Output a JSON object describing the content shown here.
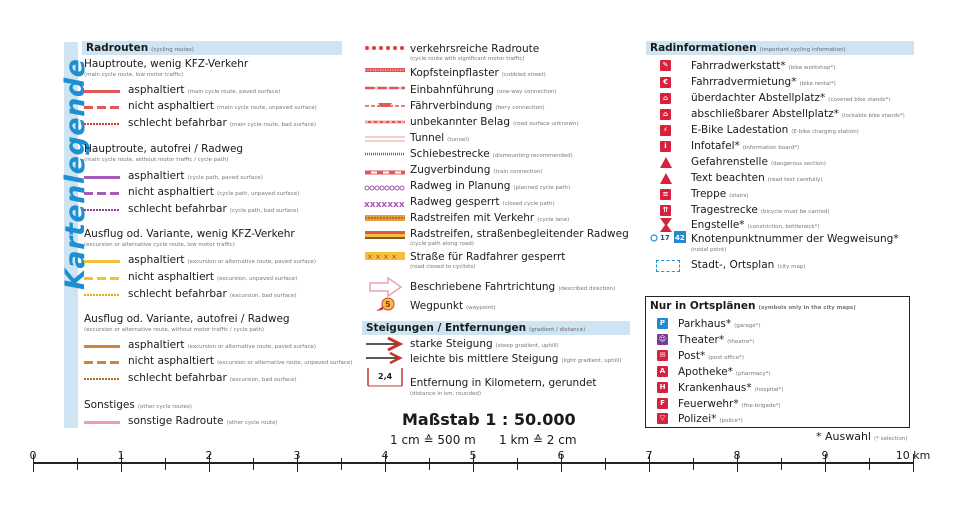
{
  "title": "Kartenlegende",
  "col1": {
    "header": "Radrouten",
    "header_sub": "(cycling routes)",
    "groups": [
      {
        "title": "Hauptroute, wenig KFZ-Verkehr",
        "sub": "(main cycle route, low motor traffic)",
        "items": [
          {
            "label": "asphaltiert",
            "sub": "(main cycle route, paved surface)"
          },
          {
            "label": "nicht asphaltiert",
            "sub": "(main cycle route, unpaved surface)"
          },
          {
            "label": "schlecht befahrbar",
            "sub": "(main cycle route, bad surface)"
          }
        ]
      },
      {
        "title": "Hauptroute, autofrei / Radweg",
        "sub": "(main cycle route, without motor traffic / cycle path)",
        "items": [
          {
            "label": "asphaltiert",
            "sub": "(cycle path, paved surface)"
          },
          {
            "label": "nicht asphaltiert",
            "sub": "(cycle path, unpaved surface)"
          },
          {
            "label": "schlecht befahrbar",
            "sub": "(cycle path, bad surface)"
          }
        ]
      },
      {
        "title": "Ausflug od. Variante, wenig KFZ-Verkehr",
        "sub": "(excursion or alternative cycle route, low motor traffic)",
        "items": [
          {
            "label": "asphaltiert",
            "sub": "(excursion or alternative route, paved surface)"
          },
          {
            "label": "nicht asphaltiert",
            "sub": "(excursion, unpaved surface)"
          },
          {
            "label": "schlecht befahrbar",
            "sub": "(excursion, bad surface)"
          }
        ]
      },
      {
        "title": "Ausflug od. Variante, autofrei / Radweg",
        "sub": "(excursion or alternative route, without motor traffic / cycle path)",
        "items": [
          {
            "label": "asphaltiert",
            "sub": "(excursion or alternative route, paved surface)"
          },
          {
            "label": "nicht asphaltiert",
            "sub": "(excursion or alternative route, unpaved surface)"
          },
          {
            "label": "schlecht befahrbar",
            "sub": "(excursion, bad surface)"
          }
        ]
      },
      {
        "title": "Sonstiges",
        "sub": "(other cycle routes)",
        "items": [
          {
            "label": "sonstige Radroute",
            "sub": "(other cycle route)"
          }
        ]
      }
    ]
  },
  "col2": {
    "items": [
      {
        "label": "verkehrsreiche Radroute",
        "sub": "(cycle route with significant motor traffic)"
      },
      {
        "label": "Kopfsteinpflaster",
        "sub": "(cobbled street)"
      },
      {
        "label": "Einbahnführung",
        "sub": "(one-way connection)"
      },
      {
        "label": "Fährverbindung",
        "sub": "(ferry connection)"
      },
      {
        "label": "unbekannter Belag",
        "sub": "(road surface unknown)"
      },
      {
        "label": "Tunnel",
        "sub": "(tunnel)"
      },
      {
        "label": "Schiebestrecke",
        "sub": "(dismounting recommended)"
      },
      {
        "label": "Zugverbindung",
        "sub": "(train connection)"
      },
      {
        "label": "Radweg in Planung",
        "sub": "(planned cycle path)"
      },
      {
        "label": "Radweg gesperrt",
        "sub": "(closed cycle path)"
      },
      {
        "label": "Radstreifen mit Verkehr",
        "sub": "(cycle lane)"
      },
      {
        "label": "Radstreifen, straßenbegleitender Radweg",
        "sub": "(cycle path along road)"
      },
      {
        "label": "Straße für Radfahrer gesperrt",
        "sub": "(road closed to cyclists)"
      },
      {
        "label": "Beschriebene Fahrtrichtung",
        "sub": "(described direction)"
      },
      {
        "label": "Wegpunkt",
        "sub": "(waypoint)"
      }
    ],
    "waypoint_number": "5",
    "gradients_header": "Steigungen / Entfernungen",
    "gradients_header_sub": "(gradient / distance)",
    "gradients": [
      {
        "label": "starke Steigung",
        "sub": "(steep gradient, uphill)"
      },
      {
        "label": "leichte bis mittlere Steigung",
        "sub": "(light gradient, uphill)"
      },
      {
        "label": "Entfernung in Kilometern, gerundet",
        "sub": "(distance in km, rounded)"
      }
    ],
    "distance_sample": "2,4"
  },
  "col3": {
    "header": "Radinformationen",
    "header_sub": "(important cycling information)",
    "items": [
      {
        "label": "Fahrradwerkstatt*",
        "sub": "(bike workshop*)",
        "icon": "wrench-icon"
      },
      {
        "label": "Fahrradvermietung*",
        "sub": "(bike rental*)",
        "icon": "bike-rental-icon"
      },
      {
        "label": "überdachter Abstellplatz*",
        "sub": "(covered bike stands*)",
        "icon": "covered-parking-icon"
      },
      {
        "label": "abschließbarer Abstellplatz*",
        "sub": "(lockable bike stands*)",
        "icon": "lockable-parking-icon"
      },
      {
        "label": "E-Bike Ladestation",
        "sub": "(E-bike charging station)",
        "icon": "charging-icon"
      },
      {
        "label": "Infotafel*",
        "sub": "(information board*)",
        "icon": "info-board-icon"
      },
      {
        "label": "Gefahrenstelle",
        "sub": "(dangerous section)",
        "icon": "danger-icon"
      },
      {
        "label": "Text beachten",
        "sub": "(read text carefully)",
        "icon": "text-note-icon"
      },
      {
        "label": "Treppe",
        "sub": "(stairs)",
        "icon": "stairs-icon"
      },
      {
        "label": "Tragestrecke",
        "sub": "(bicycle must be carried)",
        "icon": "carry-icon"
      },
      {
        "label": "Engstelle*",
        "sub": "(constriction, bottleneck*)",
        "icon": "bottleneck-icon"
      },
      {
        "label": "Knotenpunktnummer der Wegweisung*",
        "sub": "(nodal point)",
        "icon": "node-number-icon"
      },
      {
        "label": "Stadt-, Ortsplan",
        "sub": "(city map)",
        "icon": "city-map-icon"
      }
    ],
    "node_numbers": [
      "17",
      "42"
    ],
    "city_box": {
      "header": "Nur in Ortsplänen",
      "header_sub": "(symbols only in the city maps)",
      "items": [
        {
          "label": "Parkhaus*",
          "sub": "(garage*)",
          "icon": "parking-icon",
          "glyph": "P"
        },
        {
          "label": "Theater*",
          "sub": "(theatre*)",
          "icon": "theater-icon",
          "glyph": "☺"
        },
        {
          "label": "Post*",
          "sub": "(post office*)",
          "icon": "post-icon",
          "glyph": "✉"
        },
        {
          "label": "Apotheke*",
          "sub": "(pharmacy*)",
          "icon": "pharmacy-icon",
          "glyph": "A"
        },
        {
          "label": "Krankenhaus*",
          "sub": "(hospital*)",
          "icon": "hospital-icon",
          "glyph": "H"
        },
        {
          "label": "Feuerwehr*",
          "sub": "(fire-brigade*)",
          "icon": "fire-brigade-icon",
          "glyph": "F"
        },
        {
          "label": "Polizei*",
          "sub": "(police*)",
          "icon": "police-icon",
          "glyph": "▽"
        }
      ]
    },
    "selection_note": "* Auswahl",
    "selection_note_sub": "(* selection)"
  },
  "scale": {
    "title": "Maßstab 1 : 50.000",
    "conv1": "1 cm ≙ 500 m",
    "conv2": "1 km ≙ 2 cm",
    "ticks": [
      "0",
      "1",
      "2",
      "3",
      "4",
      "5",
      "6",
      "7",
      "8",
      "9",
      "10 km"
    ]
  },
  "colors": {
    "accent_blue": "#1b8fd2",
    "header_bg": "#cfe4f3",
    "route_red": "#e05555",
    "route_purple": "#a65ab5",
    "route_yellow": "#f3c03b",
    "route_brown": "#c8873d",
    "route_pink": "#ee9fb5",
    "icon_red": "#d6223c"
  }
}
